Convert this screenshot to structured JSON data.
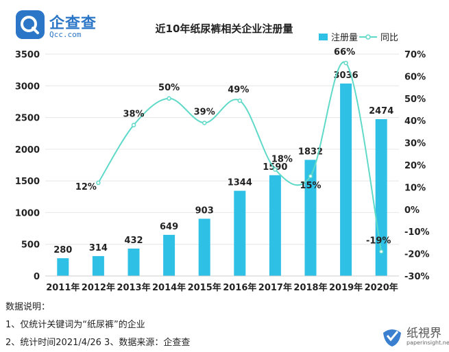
{
  "logo": {
    "text": "企查查",
    "sub": "Qcc.com"
  },
  "watermark": {
    "text": "纸視界",
    "sub": "paperinsight.net"
  },
  "notes": {
    "heading": "数据说明：",
    "line1": "1、仅统计关键词为“纸尿裤”的企业",
    "line2": "2、统计时间2021/4/26   3、数据来源：企查查"
  },
  "colors": {
    "bar": "#2fc0e6",
    "line": "#5fd9c8",
    "accent": "#2b76c6"
  },
  "chart_data": {
    "type": "bar",
    "title": "近10年纸尿裤相关企业注册量",
    "categories": [
      "2011年",
      "2012年",
      "2013年",
      "2014年",
      "2015年",
      "2016年",
      "2017年",
      "2018年",
      "2019年",
      "2020年"
    ],
    "series": [
      {
        "name": "注册量",
        "type": "bar",
        "axis": "left",
        "values": [
          280,
          314,
          432,
          649,
          903,
          1344,
          1590,
          1832,
          3036,
          2474
        ],
        "labels": [
          "280",
          "314",
          "432",
          "649",
          "903",
          "1344",
          "1590",
          "1832",
          "3036",
          "2474"
        ]
      },
      {
        "name": "同比",
        "type": "line",
        "axis": "right",
        "values": [
          null,
          12,
          38,
          50,
          39,
          49,
          18,
          15,
          66,
          -19
        ],
        "labels": [
          "",
          "12%",
          "38%",
          "50%",
          "39%",
          "49%",
          "18%",
          "15%",
          "66%",
          "-19%"
        ]
      }
    ],
    "ylim_left": [
      0,
      3500
    ],
    "yticks_left": [
      "0",
      "500",
      "1000",
      "1500",
      "2000",
      "2500",
      "3000",
      "3500"
    ],
    "ylim_right": [
      -30,
      70
    ],
    "yticks_right": [
      "-30%",
      "-20%",
      "-10%",
      "0%",
      "10%",
      "20%",
      "30%",
      "40%",
      "50%",
      "60%",
      "70%"
    ],
    "grid": true,
    "legend": "top-right"
  }
}
